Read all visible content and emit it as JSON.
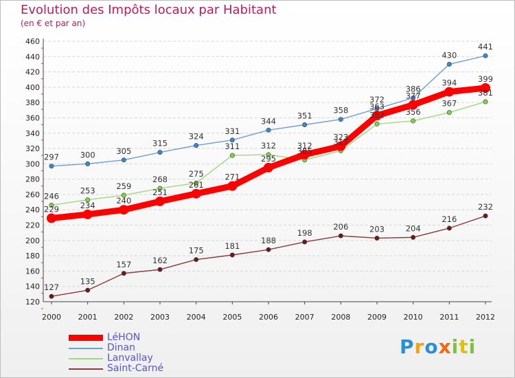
{
  "chart_data": {
    "type": "line",
    "title": "Evolution des Impôts locaux par Habitant",
    "subtitle": "(en € et par an)",
    "xlabel": "",
    "ylabel": "",
    "ylim": [
      120,
      460
    ],
    "y_ticks": [
      120,
      140,
      160,
      180,
      200,
      220,
      240,
      260,
      280,
      300,
      320,
      340,
      360,
      380,
      400,
      420,
      440,
      460
    ],
    "grid": "horizontal",
    "categories": [
      "2000",
      "2001",
      "2002",
      "2003",
      "2004",
      "2005",
      "2006",
      "2007",
      "2008",
      "2009",
      "2010",
      "2011",
      "2012"
    ],
    "series": [
      {
        "name": "LéHON",
        "color": "#ff0000",
        "marker_color": "#ff0000",
        "emphasis": true,
        "values": [
          229,
          234,
          240,
          251,
          261,
          271,
          295,
          312,
          323,
          363,
          377,
          394,
          399
        ]
      },
      {
        "name": "Dinan",
        "color": "#6f9fd0",
        "marker_color": "#3a86d6",
        "emphasis": false,
        "values": [
          297,
          300,
          305,
          315,
          324,
          331,
          344,
          351,
          358,
          372,
          386,
          430,
          441
        ]
      },
      {
        "name": "Lanvallay",
        "color": "#9fd978",
        "marker_color": "#7fd04a",
        "emphasis": false,
        "values": [
          246,
          253,
          259,
          268,
          275,
          311,
          312,
          305,
          317,
          352,
          356,
          367,
          381
        ]
      },
      {
        "name": "Saint-Carné",
        "color": "#8a3a3a",
        "marker_color": "#6b1a1a",
        "emphasis": false,
        "values": [
          127,
          135,
          157,
          162,
          175,
          181,
          188,
          198,
          206,
          203,
          204,
          216,
          232
        ]
      }
    ],
    "legend_position": "bottom-left"
  },
  "brand": {
    "letters": [
      "P",
      "r",
      "o",
      "x",
      "i",
      "t",
      "i"
    ],
    "colors": [
      "#2b8fd8",
      "#f2a20a",
      "#2b8fd8",
      "#f26a0a",
      "#7cc242",
      "#e2c10a",
      "#7cc242"
    ]
  }
}
